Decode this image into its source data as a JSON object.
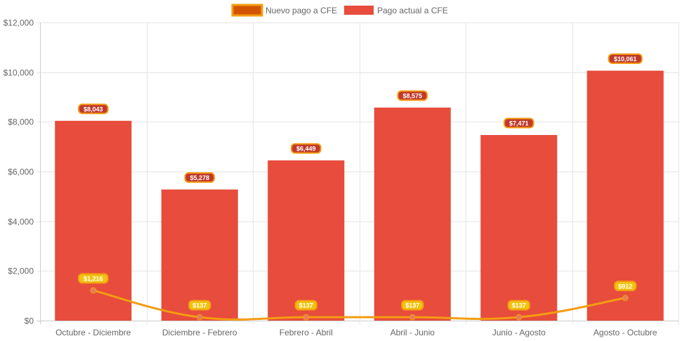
{
  "chart_data": {
    "type": "bar",
    "categories": [
      "Octubre - Diciembre",
      "Diciembre - Febrero",
      "Febrero - Abril",
      "Abril - Junio",
      "Junio - Agosto",
      "Agosto - Octubre"
    ],
    "ylim": [
      0,
      12000
    ],
    "y_ticks": [
      0,
      2000,
      4000,
      6000,
      8000,
      10000,
      12000
    ],
    "y_tick_labels": [
      "$0",
      "$2,000",
      "$4,000",
      "$6,000",
      "$8,000",
      "$10,000",
      "$12,000"
    ],
    "grid": true,
    "legend_position": "top-center",
    "series": [
      {
        "name": "Nuevo pago a CFE",
        "type": "line",
        "color": "#f39c12",
        "fill_color": "#d35400",
        "values": [
          1216,
          137,
          137,
          137,
          137,
          912
        ],
        "labels": [
          "$1,216",
          "$137",
          "$137",
          "$137",
          "$137",
          "$912"
        ]
      },
      {
        "name": "Pago actual a CFE",
        "type": "bar",
        "color": "#e74c3c",
        "values": [
          8043,
          5278,
          6449,
          8575,
          7471,
          10061
        ],
        "labels": [
          "$8,043",
          "$5,278",
          "$6,449",
          "$8,575",
          "$7,471",
          "$10,061"
        ]
      }
    ]
  }
}
